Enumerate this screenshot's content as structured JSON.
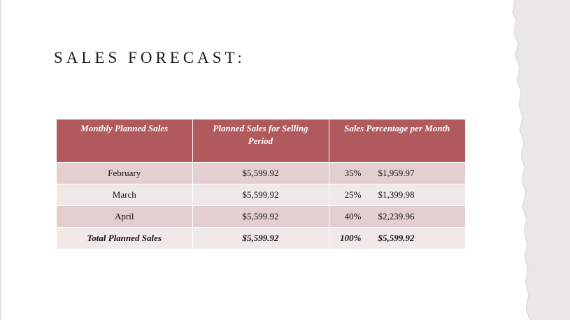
{
  "slide": {
    "title": "SALES FORECAST:"
  },
  "table": {
    "headers": [
      "Monthly Planned Sales",
      "Planned Sales for Selling Period",
      "Sales Percentage per Month"
    ],
    "rows": [
      {
        "month": "February",
        "planned": "$5,599.92",
        "percent": "35%",
        "amount": "$1,959.97"
      },
      {
        "month": "March",
        "planned": "$5,599.92",
        "percent": "25%",
        "amount": "$1,399.98"
      },
      {
        "month": "April",
        "planned": "$5,599.92",
        "percent": "40%",
        "amount": "$2,239.96"
      }
    ],
    "total": {
      "label": "Total Planned Sales",
      "planned": "$5,599.92",
      "percent": "100%",
      "amount": "$5,599.92"
    }
  },
  "colors": {
    "header_bg": "#b05a5e",
    "row_dark": "#e4cfd0",
    "row_light": "#f1e8e8",
    "torn_paper": "#e9e8e6"
  }
}
